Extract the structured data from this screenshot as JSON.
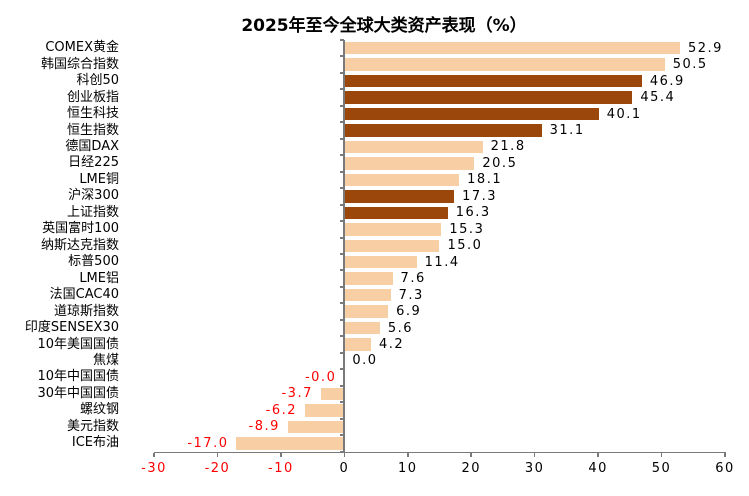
{
  "chart_data": {
    "type": "bar",
    "orientation": "horizontal",
    "title": "2025年至今全球大类资产表现（%）",
    "categories": [
      "COMEX黄金",
      "韩国综合指数",
      "科创50",
      "创业板指",
      "恒生科技",
      "恒生指数",
      "德国DAX",
      "日经225",
      "LME铜",
      "沪深300",
      "上证指数",
      "英国富时100",
      "纳斯达克指数",
      "标普500",
      "LME铝",
      "法国CAC40",
      "道琼斯指数",
      "印度SENSEX30",
      "10年美国国债",
      "焦煤",
      "10年中国国债",
      "30年中国国债",
      "螺纹钢",
      "美元指数",
      "ICE布油"
    ],
    "values": [
      52.9,
      50.5,
      46.9,
      45.4,
      40.1,
      31.1,
      21.8,
      20.5,
      18.1,
      17.3,
      16.3,
      15.3,
      15.0,
      11.4,
      7.6,
      7.3,
      6.9,
      5.6,
      4.2,
      0.0,
      -0.0,
      -3.7,
      -6.2,
      -8.9,
      -17.0
    ],
    "value_labels": [
      "52.9",
      "50.5",
      "46.9",
      "45.4",
      "40.1",
      "31.1",
      "21.8",
      "20.5",
      "18.1",
      "17.3",
      "16.3",
      "15.3",
      "15.0",
      "11.4",
      "7.6",
      "7.3",
      "6.9",
      "5.6",
      "4.2",
      "0.0",
      "-0.0",
      "-3.7",
      "-6.2",
      "-8.9",
      "-17.0"
    ],
    "bar_styles": [
      "light",
      "light",
      "dark",
      "dark",
      "dark",
      "dark",
      "light",
      "light",
      "light",
      "dark",
      "dark",
      "light",
      "light",
      "light",
      "light",
      "light",
      "light",
      "light",
      "light",
      "light",
      "light",
      "light",
      "light",
      "light",
      "light"
    ],
    "x_ticks": [
      -30,
      -20,
      -10,
      0,
      10,
      20,
      30,
      40,
      50,
      60
    ],
    "xlim": [
      -30,
      60
    ],
    "grid": false,
    "legend": null,
    "colors": {
      "bar_light": "#F8CEA4",
      "bar_dark": "#9B470B",
      "negative_text": "#FF0000",
      "positive_text": "#000000",
      "axis": "#7a7a7a"
    }
  }
}
